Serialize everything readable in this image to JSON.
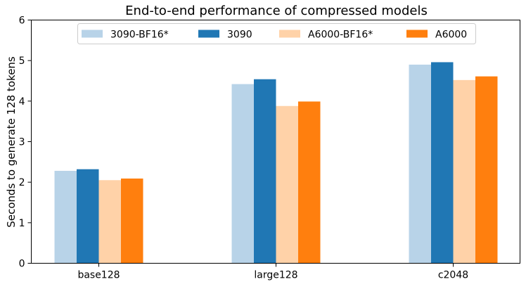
{
  "chart_data": {
    "type": "bar",
    "title": "End-to-end performance of compressed models",
    "xlabel": "",
    "ylabel": "Seconds to generate 128 tokens",
    "categories": [
      "base128",
      "large128",
      "c2048"
    ],
    "ylim": [
      0,
      6
    ],
    "yticks": [
      "0",
      "1",
      "2",
      "3",
      "4",
      "5",
      "6"
    ],
    "grid": false,
    "legend_position": "top-center",
    "series": [
      {
        "name": "3090-BF16*",
        "color": "#b8d3e8",
        "values": [
          2.28,
          4.42,
          4.9
        ]
      },
      {
        "name": "3090",
        "color": "#2077b4",
        "values": [
          2.32,
          4.54,
          4.96
        ]
      },
      {
        "name": "A6000-BF16*",
        "color": "#ffd2a8",
        "values": [
          2.05,
          3.88,
          4.52
        ]
      },
      {
        "name": "A6000",
        "color": "#ff7f0e",
        "values": [
          2.09,
          3.99,
          4.61
        ]
      }
    ]
  }
}
